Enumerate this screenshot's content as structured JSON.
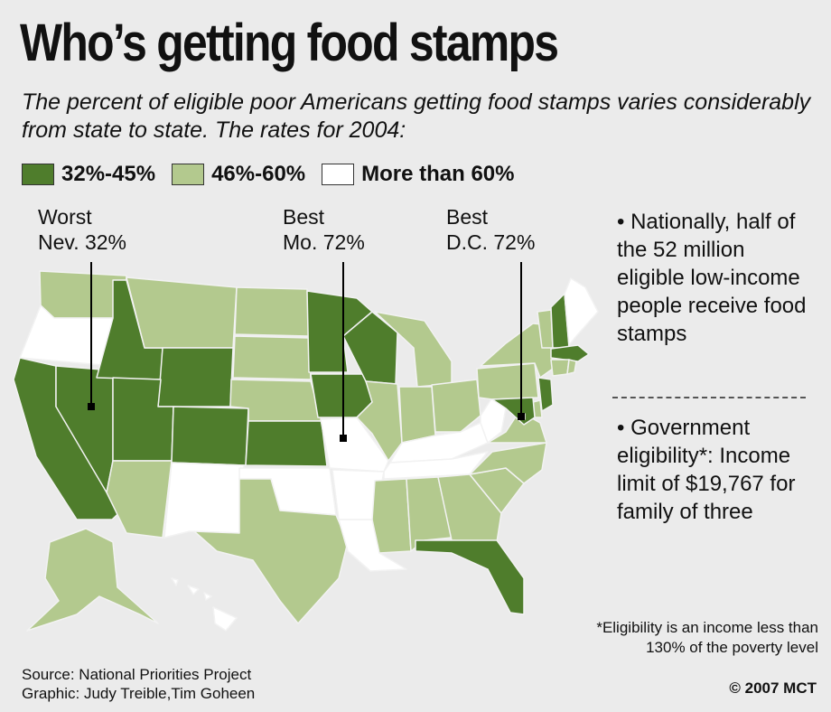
{
  "title": "Who’s getting food stamps",
  "subtitle": "The percent of eligible poor Americans getting food stamps varies considerably from state to state. The rates for 2004:",
  "legend": [
    {
      "label": "32%-45%",
      "color": "#4f7d2c"
    },
    {
      "label": "46%-60%",
      "color": "#b3c98e"
    },
    {
      "label": "More than 60%",
      "color": "#ffffff"
    }
  ],
  "callouts": {
    "worst": {
      "line1": "Worst",
      "line2": "Nev. 32%"
    },
    "best_mo": {
      "line1": "Best",
      "line2": "Mo. 72%"
    },
    "best_dc": {
      "line1": "Best",
      "line2": "D.C. 72%"
    }
  },
  "notes": {
    "national": "• Nationally, half of the 52 million eligible low-income people receive food stamps",
    "eligibility": "• Government eligibility*: Income limit of $19,767 for family of three"
  },
  "footnote": "*Eligibility is an income less than 130% of the poverty level",
  "source": {
    "line1": "Source: National Priorities Project",
    "line2": "Graphic: Judy Treible,Tim Goheen"
  },
  "copyright": "© 2007 MCT",
  "map_data": {
    "categories": {
      "low": "32%-45%",
      "mid": "46%-60%",
      "high": "More than 60%"
    },
    "states": [
      {
        "id": "WA",
        "cat": "mid"
      },
      {
        "id": "OR",
        "cat": "high"
      },
      {
        "id": "CA",
        "cat": "low"
      },
      {
        "id": "NV",
        "cat": "low"
      },
      {
        "id": "ID",
        "cat": "low"
      },
      {
        "id": "MT",
        "cat": "mid"
      },
      {
        "id": "WY",
        "cat": "low"
      },
      {
        "id": "UT",
        "cat": "low"
      },
      {
        "id": "AZ",
        "cat": "mid"
      },
      {
        "id": "CO",
        "cat": "low"
      },
      {
        "id": "NM",
        "cat": "high"
      },
      {
        "id": "ND",
        "cat": "mid"
      },
      {
        "id": "SD",
        "cat": "mid"
      },
      {
        "id": "NE",
        "cat": "mid"
      },
      {
        "id": "KS",
        "cat": "low"
      },
      {
        "id": "OK",
        "cat": "high"
      },
      {
        "id": "TX",
        "cat": "mid"
      },
      {
        "id": "MN",
        "cat": "low"
      },
      {
        "id": "IA",
        "cat": "low"
      },
      {
        "id": "MO",
        "cat": "high"
      },
      {
        "id": "AR",
        "cat": "high"
      },
      {
        "id": "LA",
        "cat": "high"
      },
      {
        "id": "WI",
        "cat": "low"
      },
      {
        "id": "IL",
        "cat": "mid"
      },
      {
        "id": "MI",
        "cat": "mid"
      },
      {
        "id": "IN",
        "cat": "mid"
      },
      {
        "id": "OH",
        "cat": "mid"
      },
      {
        "id": "KY",
        "cat": "high"
      },
      {
        "id": "TN",
        "cat": "high"
      },
      {
        "id": "MS",
        "cat": "mid"
      },
      {
        "id": "AL",
        "cat": "mid"
      },
      {
        "id": "GA",
        "cat": "mid"
      },
      {
        "id": "FL",
        "cat": "low"
      },
      {
        "id": "SC",
        "cat": "mid"
      },
      {
        "id": "NC",
        "cat": "mid"
      },
      {
        "id": "VA",
        "cat": "mid"
      },
      {
        "id": "WV",
        "cat": "high"
      },
      {
        "id": "PA",
        "cat": "mid"
      },
      {
        "id": "NY",
        "cat": "mid"
      },
      {
        "id": "VT",
        "cat": "mid"
      },
      {
        "id": "NH",
        "cat": "low"
      },
      {
        "id": "ME",
        "cat": "high"
      },
      {
        "id": "MA",
        "cat": "low"
      },
      {
        "id": "CT",
        "cat": "mid"
      },
      {
        "id": "RI",
        "cat": "mid"
      },
      {
        "id": "NJ",
        "cat": "low"
      },
      {
        "id": "DE",
        "cat": "mid"
      },
      {
        "id": "MD",
        "cat": "low"
      },
      {
        "id": "DC",
        "cat": "high"
      },
      {
        "id": "AK",
        "cat": "mid"
      },
      {
        "id": "HI",
        "cat": "high"
      }
    ]
  }
}
